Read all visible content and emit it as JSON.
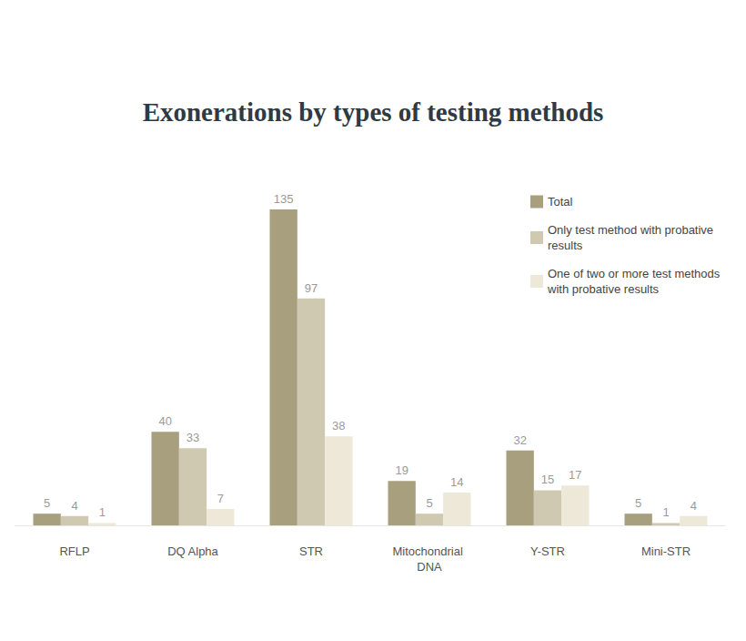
{
  "chart_data": {
    "type": "bar",
    "title": "Exonerations by types of testing methods",
    "categories": [
      "RFLP",
      "DQ Alpha",
      "STR",
      "Mitochondrial DNA",
      "Y-STR",
      "Mini-STR"
    ],
    "series": [
      {
        "name": "Total",
        "color": "#a89f7f",
        "values": [
          5,
          40,
          135,
          19,
          32,
          5
        ]
      },
      {
        "name": "Only test method with probative results",
        "color": "#d0c9b1",
        "values": [
          4,
          33,
          97,
          5,
          15,
          1
        ]
      },
      {
        "name": "One of two or more test methods with probative results",
        "color": "#ede8d8",
        "values": [
          1,
          7,
          38,
          14,
          17,
          4
        ]
      }
    ],
    "ylim": [
      0,
      135
    ],
    "grid": false,
    "legend": "top-right",
    "data_labels": true,
    "tick_labels": "x"
  }
}
